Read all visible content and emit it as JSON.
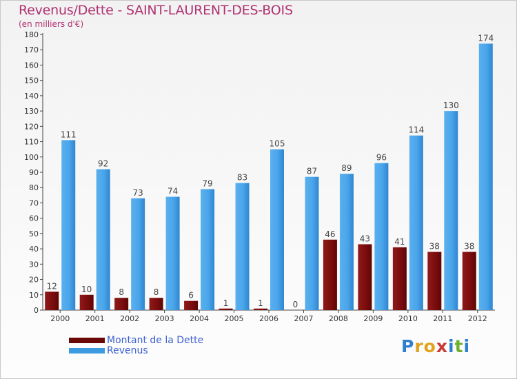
{
  "header": {
    "title": "Revenus/Dette - SAINT-LAURENT-DES-BOIS",
    "subtitle": "(en milliers d'€)"
  },
  "legend": {
    "items": [
      {
        "label": "Montant de la Dette",
        "color": "#7a0c0c"
      },
      {
        "label": "Revenus",
        "color": "#3d9be0"
      }
    ]
  },
  "brand": {
    "text": "Proxiti",
    "letters": [
      {
        "ch": "P",
        "color": "#2e7fd0"
      },
      {
        "ch": "r",
        "color": "#e2a21a"
      },
      {
        "ch": "o",
        "color": "#e2a21a"
      },
      {
        "ch": "x",
        "color": "#c83a3a"
      },
      {
        "ch": "i",
        "color": "#2e7fd0"
      },
      {
        "ch": "t",
        "color": "#6cb02c"
      },
      {
        "ch": "i",
        "color": "#2e7fd0"
      }
    ]
  },
  "chart_data": {
    "type": "bar",
    "title": "Revenus/Dette - SAINT-LAURENT-DES-BOIS",
    "subtitle": "(en milliers d'€)",
    "categories": [
      "2000",
      "2001",
      "2002",
      "2003",
      "2004",
      "2005",
      "2006",
      "2007",
      "2008",
      "2009",
      "2010",
      "2011",
      "2012"
    ],
    "series": [
      {
        "name": "Montant de la Dette",
        "color": "#7a0c0c",
        "values": [
          12,
          10,
          8,
          8,
          6,
          1,
          1,
          0,
          46,
          43,
          41,
          38,
          38
        ]
      },
      {
        "name": "Revenus",
        "color": "#3d9be0",
        "values": [
          111,
          92,
          73,
          74,
          79,
          83,
          105,
          87,
          89,
          96,
          114,
          130,
          174
        ]
      }
    ],
    "ylim": [
      0,
      180
    ],
    "yticks": [
      0,
      10,
      20,
      30,
      40,
      50,
      60,
      70,
      80,
      90,
      100,
      110,
      120,
      130,
      140,
      150,
      160,
      170,
      180
    ],
    "grid": false,
    "legend_position": "bottom-left",
    "data_labels": true
  }
}
